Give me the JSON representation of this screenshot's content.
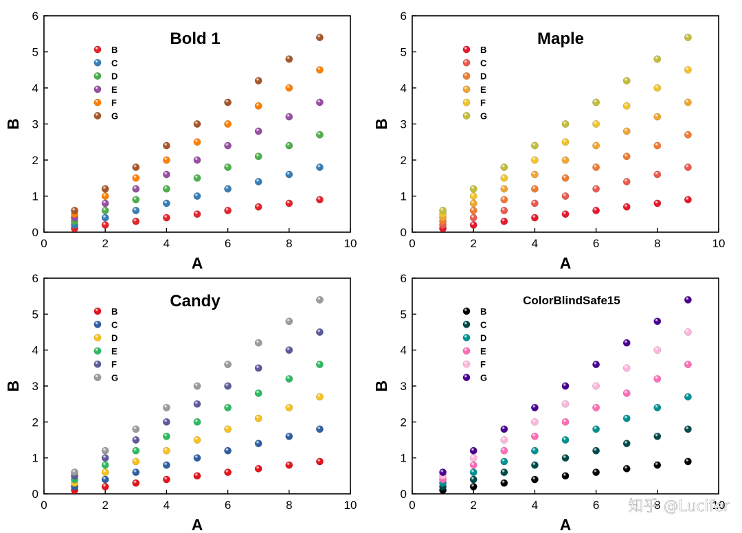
{
  "watermark": "知乎 @Lucifer",
  "chart_data": [
    {
      "type": "scatter",
      "title": "Bold 1",
      "xlabel": "A",
      "ylabel": "B",
      "xlim": [
        0,
        10
      ],
      "ylim": [
        0,
        6
      ],
      "xticks": [
        0,
        2,
        4,
        6,
        8,
        10
      ],
      "yticks": [
        0,
        1,
        2,
        3,
        4,
        5,
        6
      ],
      "x": [
        1,
        2,
        3,
        4,
        5,
        6,
        7,
        8,
        9
      ],
      "legend_position": "top-left",
      "series": [
        {
          "name": "B",
          "color": "#e3242b",
          "values": [
            0.1,
            0.2,
            0.3,
            0.4,
            0.5,
            0.6,
            0.7,
            0.8,
            0.9
          ]
        },
        {
          "name": "C",
          "color": "#377eb8",
          "values": [
            0.2,
            0.4,
            0.6,
            0.8,
            1.0,
            1.2,
            1.4,
            1.6,
            1.8
          ]
        },
        {
          "name": "D",
          "color": "#4daf4a",
          "values": [
            0.3,
            0.6,
            0.9,
            1.2,
            1.5,
            1.8,
            2.1,
            2.4,
            2.7
          ]
        },
        {
          "name": "E",
          "color": "#984ea3",
          "values": [
            0.4,
            0.8,
            1.2,
            1.6,
            2.0,
            2.4,
            2.8,
            3.2,
            3.6
          ]
        },
        {
          "name": "F",
          "color": "#ff7f00",
          "values": [
            0.5,
            1.0,
            1.5,
            2.0,
            2.5,
            3.0,
            3.5,
            4.0,
            4.5
          ]
        },
        {
          "name": "G",
          "color": "#a65628",
          "values": [
            0.6,
            1.2,
            1.8,
            2.4,
            3.0,
            3.6,
            4.2,
            4.8,
            5.4
          ]
        }
      ]
    },
    {
      "type": "scatter",
      "title": "Maple",
      "xlabel": "A",
      "ylabel": "B",
      "xlim": [
        0,
        10
      ],
      "ylim": [
        0,
        6
      ],
      "xticks": [
        0,
        2,
        4,
        6,
        8,
        10
      ],
      "yticks": [
        0,
        1,
        2,
        3,
        4,
        5,
        6
      ],
      "x": [
        1,
        2,
        3,
        4,
        5,
        6,
        7,
        8,
        9
      ],
      "legend_position": "top-left",
      "series": [
        {
          "name": "B",
          "color": "#e8182b",
          "values": [
            0.1,
            0.2,
            0.3,
            0.4,
            0.5,
            0.6,
            0.7,
            0.8,
            0.9
          ]
        },
        {
          "name": "C",
          "color": "#ec5a4e",
          "values": [
            0.2,
            0.4,
            0.6,
            0.8,
            1.0,
            1.2,
            1.4,
            1.6,
            1.8
          ]
        },
        {
          "name": "D",
          "color": "#ef7b34",
          "values": [
            0.3,
            0.6,
            0.9,
            1.2,
            1.5,
            1.8,
            2.1,
            2.4,
            2.7
          ]
        },
        {
          "name": "E",
          "color": "#f1a530",
          "values": [
            0.4,
            0.8,
            1.2,
            1.6,
            2.0,
            2.4,
            2.8,
            3.2,
            3.6
          ]
        },
        {
          "name": "F",
          "color": "#f2c42a",
          "values": [
            0.5,
            1.0,
            1.5,
            2.0,
            2.5,
            3.0,
            3.5,
            4.0,
            4.5
          ]
        },
        {
          "name": "G",
          "color": "#c3be3a",
          "values": [
            0.6,
            1.2,
            1.8,
            2.4,
            3.0,
            3.6,
            4.2,
            4.8,
            5.4
          ]
        }
      ]
    },
    {
      "type": "scatter",
      "title": "Candy",
      "xlabel": "A",
      "ylabel": "B",
      "xlim": [
        0,
        10
      ],
      "ylim": [
        0,
        6
      ],
      "xticks": [
        0,
        2,
        4,
        6,
        8,
        10
      ],
      "yticks": [
        0,
        1,
        2,
        3,
        4,
        5,
        6
      ],
      "x": [
        1,
        2,
        3,
        4,
        5,
        6,
        7,
        8,
        9
      ],
      "legend_position": "top-left",
      "series": [
        {
          "name": "B",
          "color": "#e3141c",
          "values": [
            0.1,
            0.2,
            0.3,
            0.4,
            0.5,
            0.6,
            0.7,
            0.8,
            0.9
          ]
        },
        {
          "name": "C",
          "color": "#2e5fa3",
          "values": [
            0.2,
            0.4,
            0.6,
            0.8,
            1.0,
            1.2,
            1.4,
            1.6,
            1.8
          ]
        },
        {
          "name": "D",
          "color": "#f7c21e",
          "values": [
            0.3,
            0.6,
            0.9,
            1.2,
            1.5,
            1.8,
            2.1,
            2.4,
            2.7
          ]
        },
        {
          "name": "E",
          "color": "#2dbb62",
          "values": [
            0.4,
            0.8,
            1.2,
            1.6,
            2.0,
            2.4,
            2.8,
            3.2,
            3.6
          ]
        },
        {
          "name": "F",
          "color": "#5c5a9c",
          "values": [
            0.5,
            1.0,
            1.5,
            2.0,
            2.5,
            3.0,
            3.5,
            4.0,
            4.5
          ]
        },
        {
          "name": "G",
          "color": "#9b9b9b",
          "values": [
            0.6,
            1.2,
            1.8,
            2.4,
            3.0,
            3.6,
            4.2,
            4.8,
            5.4
          ]
        }
      ]
    },
    {
      "type": "scatter",
      "title": "ColorBlindSafe15",
      "xlabel": "A",
      "ylabel": "B",
      "xlim": [
        0,
        10
      ],
      "ylim": [
        0,
        6
      ],
      "xticks": [
        0,
        2,
        4,
        6,
        8,
        10
      ],
      "yticks": [
        0,
        1,
        2,
        3,
        4,
        5,
        6
      ],
      "x": [
        1,
        2,
        3,
        4,
        5,
        6,
        7,
        8,
        9
      ],
      "legend_position": "top-left",
      "series": [
        {
          "name": "B",
          "color": "#000000",
          "values": [
            0.1,
            0.2,
            0.3,
            0.4,
            0.5,
            0.6,
            0.7,
            0.8,
            0.9
          ]
        },
        {
          "name": "C",
          "color": "#004949",
          "values": [
            0.2,
            0.4,
            0.6,
            0.8,
            1.0,
            1.2,
            1.4,
            1.6,
            1.8
          ]
        },
        {
          "name": "D",
          "color": "#009292",
          "values": [
            0.3,
            0.6,
            0.9,
            1.2,
            1.5,
            1.8,
            2.1,
            2.4,
            2.7
          ]
        },
        {
          "name": "E",
          "color": "#ff6db6",
          "values": [
            0.4,
            0.8,
            1.2,
            1.6,
            2.0,
            2.4,
            2.8,
            3.2,
            3.6
          ]
        },
        {
          "name": "F",
          "color": "#ffb6db",
          "values": [
            0.5,
            1.0,
            1.5,
            2.0,
            2.5,
            3.0,
            3.5,
            4.0,
            4.5
          ]
        },
        {
          "name": "G",
          "color": "#490092",
          "values": [
            0.6,
            1.2,
            1.8,
            2.4,
            3.0,
            3.6,
            4.2,
            4.8,
            5.4
          ]
        }
      ]
    }
  ]
}
